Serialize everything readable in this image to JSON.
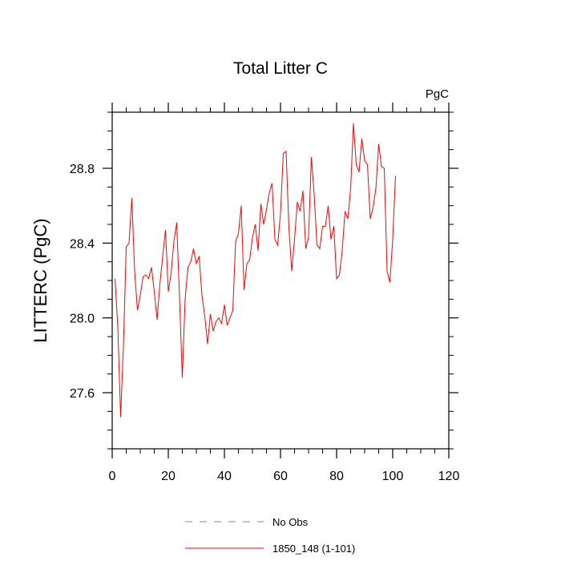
{
  "chart_data": {
    "type": "line",
    "title": "Total Litter C",
    "units_label": "PgC",
    "xlabel": "",
    "ylabel": "LITTERC  (PgC)",
    "xlim": [
      0,
      120
    ],
    "ylim": [
      27.3,
      29.1
    ],
    "x_ticks": [
      0,
      20,
      40,
      60,
      80,
      100,
      120
    ],
    "x_tick_labels": [
      "0",
      "20",
      "40",
      "60",
      "80",
      "100",
      "120"
    ],
    "y_ticks": [
      27.6,
      28.0,
      28.4,
      28.8
    ],
    "y_tick_labels": [
      "27.6",
      "28.0",
      "28.4",
      "28.8"
    ],
    "grid": false,
    "legend_position": "bottom",
    "legend": [
      {
        "label": "No Obs",
        "color": "#7b7bff",
        "dash": true
      },
      {
        "label": "1850_148 (1-101)",
        "color": "#ff0000",
        "dash": false
      }
    ],
    "series": [
      {
        "name": "1850_148 (1-101)",
        "color": "#ff0000",
        "x": [
          1,
          2,
          3,
          4,
          5,
          6,
          7,
          8,
          9,
          10,
          11,
          12,
          13,
          14,
          15,
          16,
          17,
          18,
          19,
          20,
          21,
          22,
          23,
          24,
          25,
          26,
          27,
          28,
          29,
          30,
          31,
          32,
          33,
          34,
          35,
          36,
          37,
          38,
          39,
          40,
          41,
          42,
          43,
          44,
          45,
          46,
          47,
          48,
          49,
          50,
          51,
          52,
          53,
          54,
          55,
          56,
          57,
          58,
          59,
          60,
          61,
          62,
          63,
          64,
          65,
          66,
          67,
          68,
          69,
          70,
          71,
          72,
          73,
          74,
          75,
          76,
          77,
          78,
          79,
          80,
          81,
          82,
          83,
          84,
          85,
          86,
          87,
          88,
          89,
          90,
          91,
          92,
          93,
          94,
          95,
          96,
          97,
          98,
          99,
          100,
          101
        ],
        "values": [
          28.21,
          27.95,
          27.47,
          27.85,
          28.38,
          28.4,
          28.64,
          28.25,
          28.04,
          28.12,
          28.22,
          28.23,
          28.21,
          28.27,
          28.14,
          27.99,
          28.18,
          28.33,
          28.47,
          28.14,
          28.24,
          28.41,
          28.51,
          28.11,
          27.68,
          28.1,
          28.27,
          28.3,
          28.37,
          28.29,
          28.33,
          28.12,
          28.01,
          27.86,
          28.02,
          27.93,
          27.98,
          28.0,
          27.97,
          28.07,
          27.96,
          28.0,
          28.04,
          28.41,
          28.45,
          28.6,
          28.15,
          28.29,
          28.31,
          28.43,
          28.5,
          28.36,
          28.61,
          28.5,
          28.58,
          28.67,
          28.72,
          28.42,
          28.39,
          28.56,
          28.88,
          28.89,
          28.48,
          28.25,
          28.42,
          28.62,
          28.57,
          28.68,
          28.37,
          28.43,
          28.86,
          28.66,
          28.39,
          28.37,
          28.49,
          28.49,
          28.6,
          28.42,
          28.49,
          28.21,
          28.23,
          28.36,
          28.57,
          28.53,
          28.69,
          29.04,
          28.82,
          28.78,
          28.96,
          28.84,
          28.82,
          28.53,
          28.59,
          28.69,
          28.93,
          28.81,
          28.8,
          28.25,
          28.19,
          28.42,
          28.76
        ]
      }
    ]
  }
}
